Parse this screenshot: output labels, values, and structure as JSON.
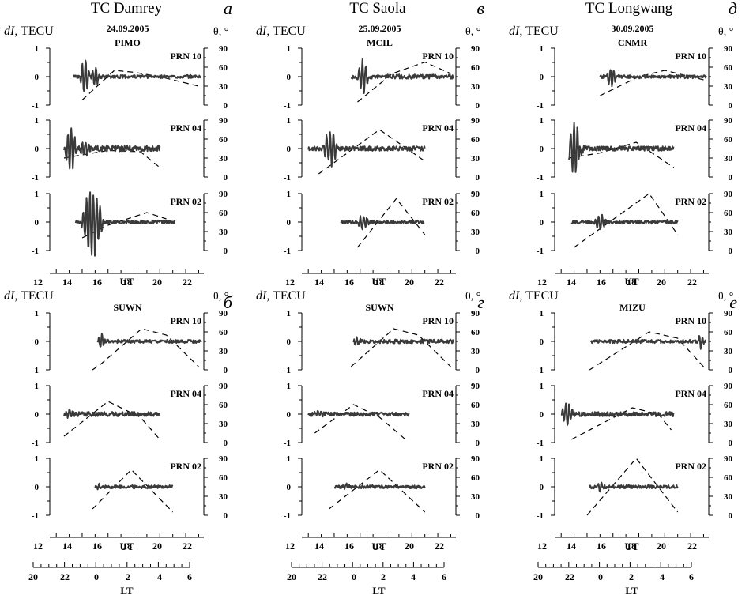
{
  "figure": {
    "column_titles": [
      "TC Damrey",
      "TC Saola",
      "TC Longwang"
    ],
    "dates": [
      "24.09.2005",
      "25.09.2005",
      "30.09.2005"
    ],
    "left_axis_label_prefix": "dI",
    "left_axis_label_unit": ", TECU",
    "right_axis_label": "θ, °",
    "ut_label": "UT",
    "lt_label": "LT",
    "ut_ticks": [
      "12",
      "14",
      "16",
      "18",
      "20",
      "22"
    ],
    "lt_ticks": [
      "20",
      "22",
      "0",
      "2",
      "4",
      "6"
    ],
    "colors": {
      "signal": "#3a3a3a",
      "elevation": "#000000"
    }
  },
  "chart_data": [
    {
      "panel_letter": "а",
      "station": "PIMO",
      "title": "TC Damrey",
      "date": "24.09.2005",
      "type": "line",
      "xlabel": "UT",
      "xlim": [
        11.5,
        23.4
      ],
      "ylabel": "dI, TECU",
      "ylim": [
        -1,
        1
      ],
      "y2label": "θ, °",
      "y2lim": [
        0,
        90
      ],
      "subplots": [
        {
          "prn": "PRN 10",
          "dI": {
            "start": 13.3,
            "end": 23.2,
            "disturbances": [
              [
                14.2,
                0.8,
                0.4
              ],
              [
                15.0,
                0.4,
                0.35
              ]
            ],
            "noise": 0.06
          },
          "elevation": [
            [
              14.0,
              8
            ],
            [
              16.5,
              55
            ],
            [
              18.0,
              52
            ],
            [
              20.0,
              45
            ],
            [
              23.0,
              30
            ]
          ]
        },
        {
          "prn": "PRN 04",
          "dI": {
            "start": 12.6,
            "end": 20.0,
            "disturbances": [
              [
                13.1,
                0.9,
                0.5
              ],
              [
                14.2,
                0.3,
                0.5
              ]
            ],
            "noise": 0.1
          },
          "elevation": [
            [
              12.6,
              30
            ],
            [
              16.0,
              42
            ],
            [
              18.5,
              40
            ],
            [
              20.0,
              15
            ]
          ]
        },
        {
          "prn": "PRN 02",
          "dI": {
            "start": 13.5,
            "end": 21.2,
            "disturbances": [
              [
                14.8,
                1.3,
                0.9
              ]
            ],
            "noise": 0.06
          },
          "elevation": [
            [
              14.0,
              20
            ],
            [
              16.0,
              40
            ],
            [
              19.0,
              60
            ],
            [
              20.5,
              50
            ]
          ]
        }
      ]
    },
    {
      "panel_letter": "б",
      "station": "SUWN",
      "type": "line",
      "xlabel": "UT",
      "xlim": [
        11.5,
        23.4
      ],
      "ylabel": "dI, TECU",
      "ylim": [
        -1,
        1
      ],
      "y2label": "θ, °",
      "y2lim": [
        0,
        90
      ],
      "subplots": [
        {
          "prn": "PRN 10",
          "dI": {
            "start": 15.2,
            "end": 23.2,
            "disturbances": [
              [
                15.5,
                0.3,
                0.3
              ]
            ],
            "noise": 0.06
          },
          "elevation": [
            [
              14.8,
              0
            ],
            [
              15.5,
              10
            ],
            [
              18.6,
              65
            ],
            [
              20.5,
              55
            ],
            [
              23.0,
              5
            ]
          ]
        },
        {
          "prn": "PRN 04",
          "dI": {
            "start": 12.6,
            "end": 20.0,
            "disturbances": [
              [
                13.0,
                0.15,
                0.5
              ]
            ],
            "noise": 0.08
          },
          "elevation": [
            [
              12.6,
              10
            ],
            [
              16.0,
              65
            ],
            [
              18.5,
              40
            ],
            [
              20.0,
              5
            ]
          ]
        },
        {
          "prn": "PRN 02",
          "dI": {
            "start": 15.0,
            "end": 21.0,
            "disturbances": [
              [
                15.3,
                0.1,
                0.3
              ]
            ],
            "noise": 0.06
          },
          "elevation": [
            [
              14.8,
              10
            ],
            [
              17.8,
              72
            ],
            [
              21.0,
              5
            ]
          ]
        }
      ]
    },
    {
      "panel_letter": "в",
      "station": "MCIL",
      "title": "TC Saola",
      "date": "25.09.2005",
      "type": "line",
      "xlabel": "UT",
      "xlim": [
        11.5,
        23.4
      ],
      "ylabel": "dI, TECU",
      "ylim": [
        -1,
        1
      ],
      "y2label": "θ, °",
      "y2lim": [
        0,
        90
      ],
      "subplots": [
        {
          "prn": "PRN 10",
          "dI": {
            "start": 15.3,
            "end": 23.2,
            "disturbances": [
              [
                16.2,
                0.6,
                0.5
              ]
            ],
            "noise": 0.08
          },
          "elevation": [
            [
              15.8,
              5
            ],
            [
              18.5,
              50
            ],
            [
              21.0,
              68
            ],
            [
              23.0,
              50
            ]
          ]
        },
        {
          "prn": "PRN 04",
          "dI": {
            "start": 12.0,
            "end": 21.0,
            "disturbances": [
              [
                13.7,
                0.7,
                0.6
              ]
            ],
            "noise": 0.08
          },
          "elevation": [
            [
              12.8,
              5
            ],
            [
              17.5,
              75
            ],
            [
              21.0,
              25
            ]
          ]
        },
        {
          "prn": "PRN 02",
          "dI": {
            "start": 14.5,
            "end": 21.0,
            "disturbances": [
              [
                16.3,
                0.3,
                0.5
              ]
            ],
            "noise": 0.06
          },
          "elevation": [
            [
              15.8,
              5
            ],
            [
              18.8,
              82
            ],
            [
              21.0,
              25
            ]
          ]
        }
      ]
    },
    {
      "panel_letter": "г",
      "station": "SUWN",
      "type": "line",
      "xlabel": "UT",
      "xlim": [
        11.5,
        23.4
      ],
      "ylabel": "dI, TECU",
      "ylim": [
        -1,
        1
      ],
      "y2label": "θ, °",
      "y2lim": [
        0,
        90
      ],
      "subplots": [
        {
          "prn": "PRN 10",
          "dI": {
            "start": 15.5,
            "end": 23.2,
            "disturbances": [
              [
                15.8,
                0.2,
                0.3
              ]
            ],
            "noise": 0.07
          },
          "elevation": [
            [
              15.3,
              5
            ],
            [
              18.6,
              65
            ],
            [
              20.5,
              55
            ],
            [
              23.0,
              5
            ]
          ]
        },
        {
          "prn": "PRN 04",
          "dI": {
            "start": 12.0,
            "end": 19.8,
            "disturbances": [
              [
                12.8,
                0.1,
                0.4
              ]
            ],
            "noise": 0.07
          },
          "elevation": [
            [
              12.5,
              15
            ],
            [
              15.5,
              60
            ],
            [
              17.5,
              40
            ],
            [
              19.5,
              5
            ]
          ]
        },
        {
          "prn": "PRN 02",
          "dI": {
            "start": 14.0,
            "end": 21.0,
            "disturbances": [
              [
                15.0,
                0.1,
                0.3
              ]
            ],
            "noise": 0.06
          },
          "elevation": [
            [
              13.6,
              10
            ],
            [
              17.5,
              72
            ],
            [
              21.0,
              5
            ]
          ]
        }
      ]
    },
    {
      "panel_letter": "д",
      "station": "CNMR",
      "title": "TC Longwang",
      "date": "30.09.2005",
      "type": "line",
      "xlabel": "UT",
      "xlim": [
        11.5,
        23.4
      ],
      "ylabel": "dI, TECU",
      "ylim": [
        -1,
        1
      ],
      "y2label": "θ, °",
      "y2lim": [
        0,
        90
      ],
      "subplots": [
        {
          "prn": "PRN 10",
          "dI": {
            "start": 15.0,
            "end": 23.2,
            "disturbances": [
              [
                15.9,
                0.4,
                0.4
              ]
            ],
            "noise": 0.06
          },
          "elevation": [
            [
              15.0,
              15
            ],
            [
              18.0,
              45
            ],
            [
              20.0,
              55
            ],
            [
              23.0,
              40
            ]
          ]
        },
        {
          "prn": "PRN 04",
          "dI": {
            "start": 12.6,
            "end": 20.7,
            "disturbances": [
              [
                13.1,
                1.0,
                0.7
              ],
              [
                13.5,
                0.8,
                0.2
              ]
            ],
            "noise": 0.08
          },
          "elevation": [
            [
              12.6,
              30
            ],
            [
              15.0,
              38
            ],
            [
              17.8,
              55
            ],
            [
              20.7,
              15
            ]
          ]
        },
        {
          "prn": "PRN 02",
          "dI": {
            "start": 12.8,
            "end": 21.0,
            "disturbances": [
              [
                15.0,
                0.3,
                0.5
              ]
            ],
            "noise": 0.06
          },
          "elevation": [
            [
              13.0,
              5
            ],
            [
              18.8,
              90
            ],
            [
              21.0,
              25
            ]
          ]
        }
      ]
    },
    {
      "panel_letter": "е",
      "station": "MIZU",
      "type": "line",
      "xlabel": "UT",
      "xlim": [
        11.5,
        23.4
      ],
      "ylabel": "dI, TECU",
      "ylim": [
        -1,
        1
      ],
      "y2label": "θ, °",
      "y2lim": [
        0,
        90
      ],
      "subplots": [
        {
          "prn": "PRN 10",
          "dI": {
            "start": 14.3,
            "end": 23.2,
            "disturbances": [
              [
                22.8,
                0.25,
                0.3
              ]
            ],
            "noise": 0.06
          },
          "elevation": [
            [
              14.2,
              0
            ],
            [
              18.8,
              60
            ],
            [
              21.0,
              50
            ],
            [
              23.0,
              5
            ]
          ]
        },
        {
          "prn": "PRN 04",
          "dI": {
            "start": 12.0,
            "end": 20.7,
            "disturbances": [
              [
                12.5,
                0.4,
                0.5
              ]
            ],
            "noise": 0.08
          },
          "elevation": [
            [
              12.8,
              5
            ],
            [
              17.5,
              55
            ],
            [
              19.5,
              45
            ],
            [
              20.5,
              20
            ]
          ]
        },
        {
          "prn": "PRN 02",
          "dI": {
            "start": 14.2,
            "end": 21.0,
            "disturbances": [
              [
                15.0,
                0.2,
                0.3
              ]
            ],
            "noise": 0.06
          },
          "elevation": [
            [
              14.0,
              0
            ],
            [
              17.8,
              90
            ],
            [
              21.0,
              5
            ]
          ]
        }
      ]
    }
  ]
}
